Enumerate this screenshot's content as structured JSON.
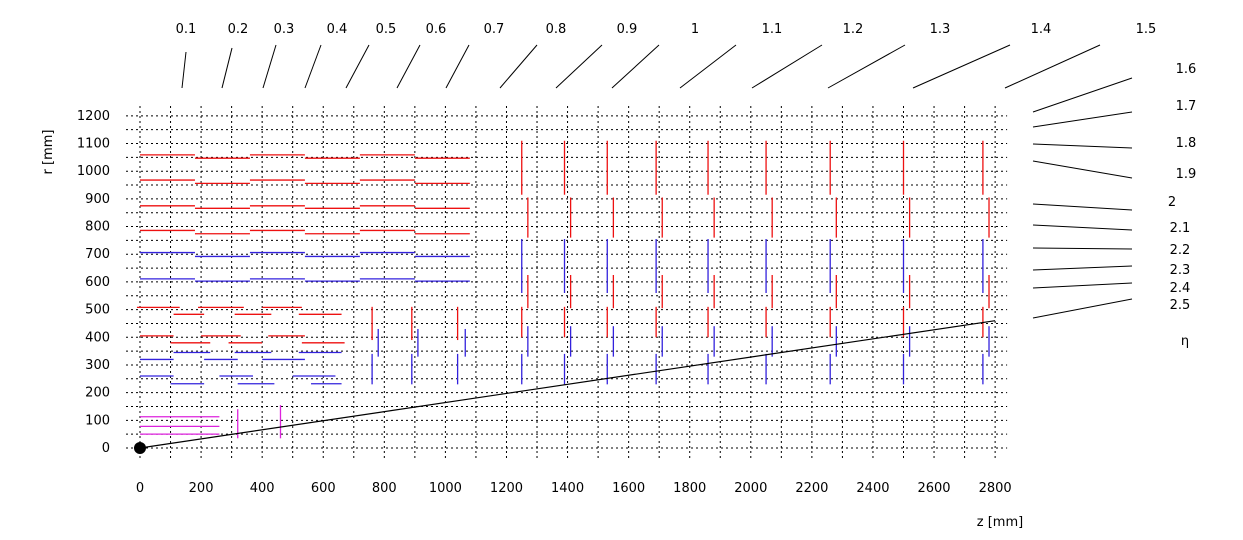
{
  "chart_data": {
    "type": "diagram",
    "xlabel": "z [mm]",
    "ylabel": "r [mm]",
    "eta_label": "η",
    "xlim": [
      0,
      2800
    ],
    "ylim": [
      0,
      1200
    ],
    "xticks": [
      0,
      200,
      400,
      600,
      800,
      1000,
      1200,
      1400,
      1600,
      1800,
      2000,
      2200,
      2400,
      2600,
      2800
    ],
    "yticks": [
      0,
      100,
      200,
      300,
      400,
      500,
      600,
      700,
      800,
      900,
      1000,
      1100,
      1200
    ],
    "grid": true,
    "eta_values": [
      "0.1",
      "0.2",
      "0.3",
      "0.4",
      "0.5",
      "0.6",
      "0.7",
      "0.8",
      "0.9",
      "1",
      "1.1",
      "1.2",
      "1.3",
      "1.4",
      "1.5",
      "1.6",
      "1.7",
      "1.8",
      "1.9",
      "2",
      "2.1",
      "2.2",
      "2.3",
      "2.4",
      "2.5"
    ],
    "colors": {
      "red": "#ee1111",
      "blue": "#3322dd",
      "magenta": "#dd22dd",
      "black": "#000000"
    },
    "origin_point": {
      "z": 0,
      "r": 0
    },
    "eta25_line": {
      "from": [
        0,
        0
      ],
      "to": [
        2800,
        460
      ]
    },
    "barrel_layers": [
      {
        "color": "red",
        "r_even": 1059,
        "r_odd": 1047
      },
      {
        "color": "red",
        "r_even": 968,
        "r_odd": 956
      },
      {
        "color": "red",
        "r_even": 875,
        "r_odd": 866
      },
      {
        "color": "red",
        "r_even": 786,
        "r_odd": 774
      },
      {
        "color": "blue",
        "r_even": 706,
        "r_odd": 692
      },
      {
        "color": "blue",
        "r_even": 611,
        "r_odd": 603
      }
    ],
    "barrel_z_segments": [
      [
        0,
        180
      ],
      [
        180,
        360
      ],
      [
        360,
        540
      ],
      [
        540,
        720
      ],
      [
        720,
        900
      ],
      [
        900,
        1080
      ]
    ],
    "inner_barrel_strips": [
      {
        "color": "red",
        "r": 508,
        "z": [
          [
            -10,
            130
          ],
          [
            190,
            340
          ],
          [
            400,
            530
          ]
        ]
      },
      {
        "color": "red",
        "r": 483,
        "z": [
          [
            110,
            210
          ],
          [
            310,
            430
          ],
          [
            520,
            660
          ]
        ]
      },
      {
        "color": "red",
        "r": 405,
        "z": [
          [
            0,
            110
          ],
          [
            200,
            330
          ],
          [
            420,
            540
          ]
        ]
      },
      {
        "color": "red",
        "r": 380,
        "z": [
          [
            100,
            230
          ],
          [
            290,
            400
          ],
          [
            530,
            670
          ]
        ]
      },
      {
        "color": "blue",
        "r": 345,
        "z": [
          [
            110,
            230
          ],
          [
            310,
            430
          ],
          [
            520,
            660
          ]
        ]
      },
      {
        "color": "blue",
        "r": 320,
        "z": [
          [
            0,
            110
          ],
          [
            210,
            320
          ],
          [
            400,
            540
          ]
        ]
      },
      {
        "color": "blue",
        "r": 260,
        "z": [
          [
            0,
            110
          ],
          [
            260,
            370
          ],
          [
            500,
            640
          ]
        ]
      },
      {
        "color": "blue",
        "r": 232,
        "z": [
          [
            100,
            210
          ],
          [
            320,
            440
          ],
          [
            560,
            660
          ]
        ]
      }
    ],
    "pixel_barrel": [
      {
        "color": "magenta",
        "r": 113,
        "z": [
          [
            0,
            260
          ]
        ]
      },
      {
        "color": "magenta",
        "r": 78,
        "z": [
          [
            0,
            260
          ]
        ]
      },
      {
        "color": "magenta",
        "r": 50,
        "z": [
          [
            0,
            260
          ]
        ]
      }
    ],
    "pixel_disks": [
      {
        "color": "magenta",
        "z": 320,
        "r": [
          35,
          140
        ]
      },
      {
        "color": "magenta",
        "z": 460,
        "r": [
          35,
          155
        ]
      }
    ],
    "inner_disks": [
      {
        "color": "red",
        "z": 760,
        "r": [
          390,
          510
        ]
      },
      {
        "color": "blue",
        "z": 760,
        "r": [
          230,
          340
        ]
      },
      {
        "color": "blue",
        "z": 780,
        "r": [
          330,
          430
        ]
      },
      {
        "color": "red",
        "z": 890,
        "r": [
          390,
          510
        ]
      },
      {
        "color": "blue",
        "z": 890,
        "r": [
          230,
          340
        ]
      },
      {
        "color": "blue",
        "z": 910,
        "r": [
          330,
          430
        ]
      },
      {
        "color": "red",
        "z": 1040,
        "r": [
          390,
          510
        ]
      },
      {
        "color": "blue",
        "z": 1040,
        "r": [
          230,
          340
        ]
      },
      {
        "color": "blue",
        "z": 1065,
        "r": [
          330,
          430
        ]
      }
    ],
    "endcap_disks_z": [
      1250,
      1390,
      1530,
      1690,
      1860,
      2050,
      2260,
      2500,
      2760
    ],
    "endcap_disk_offset": 20,
    "endcap_segments": [
      {
        "color": "red",
        "r": [
          915,
          1110
        ],
        "offset": false
      },
      {
        "color": "red",
        "r": [
          760,
          905
        ],
        "offset": true
      },
      {
        "color": "blue",
        "r": [
          560,
          755
        ],
        "offset": false
      },
      {
        "color": "red",
        "r": [
          505,
          625
        ],
        "offset": true
      },
      {
        "color": "red",
        "r": [
          400,
          510
        ],
        "offset": false
      },
      {
        "color": "blue",
        "r": [
          330,
          440
        ],
        "offset": true
      },
      {
        "color": "blue",
        "r": [
          230,
          340
        ],
        "offset": false
      }
    ]
  }
}
